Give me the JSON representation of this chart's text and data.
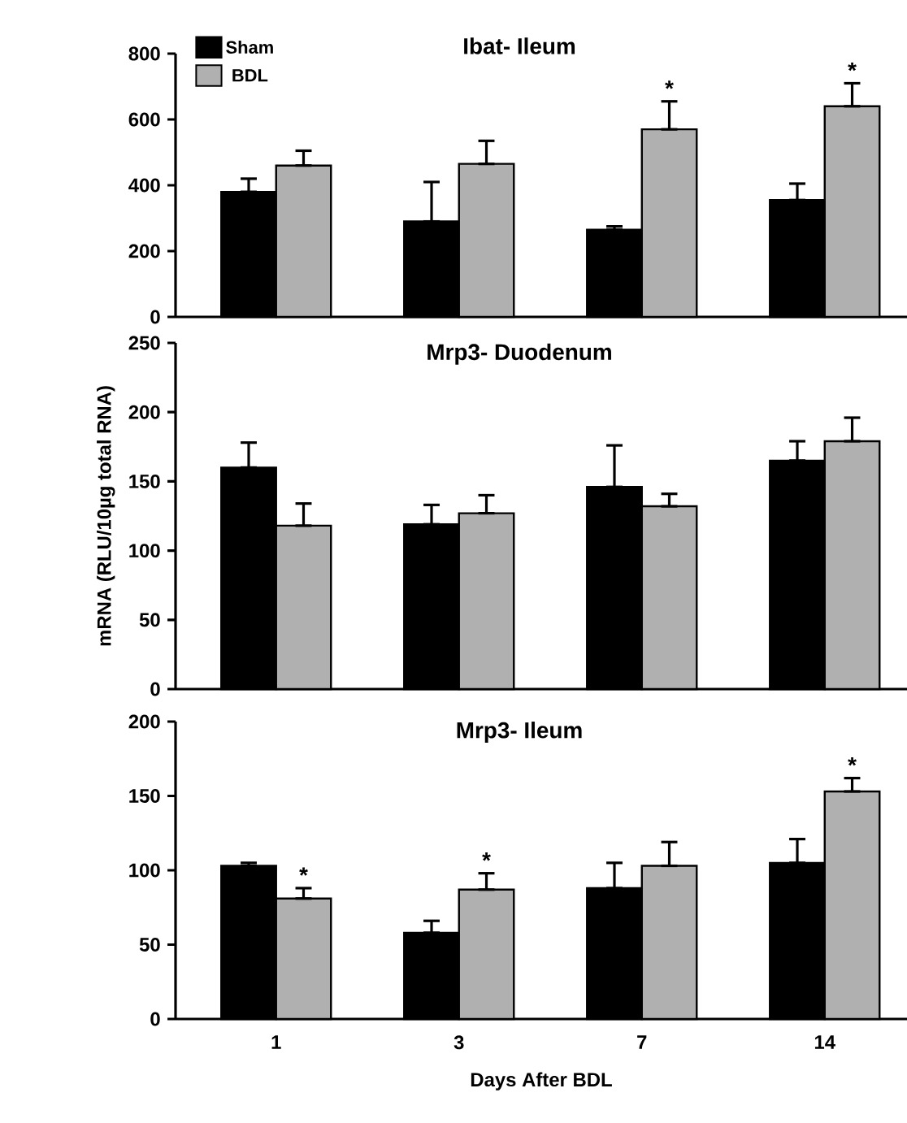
{
  "chart_data": [
    {
      "type": "bar",
      "title": "Ibat- Ileum",
      "categories": [
        "1",
        "3",
        "7",
        "14"
      ],
      "series": [
        {
          "name": "Sham",
          "color": "#000000",
          "values": [
            380,
            290,
            265,
            355
          ],
          "errors": [
            [
              380,
              420
            ],
            [
              290,
              410
            ],
            [
              265,
              275
            ],
            [
              355,
              405
            ]
          ]
        },
        {
          "name": "BDL",
          "color": "#b0b0b0",
          "values": [
            460,
            465,
            570,
            640
          ],
          "errors": [
            [
              460,
              505
            ],
            [
              465,
              535
            ],
            [
              570,
              655
            ],
            [
              640,
              710
            ]
          ],
          "value_labels": [
            null,
            null,
            "*",
            "*"
          ]
        }
      ],
      "ylim": [
        0,
        800
      ],
      "yticks": [
        0,
        200,
        400,
        600,
        800
      ],
      "legend": "top left",
      "tick_labels": "y"
    },
    {
      "type": "bar",
      "title": "Mrp3- Duodenum",
      "ylabel": "mRNA (RLU/10µg total RNA)",
      "categories": [
        "1",
        "3",
        "7",
        "14"
      ],
      "series": [
        {
          "color": "#000000",
          "values": [
            160,
            119,
            146,
            165
          ],
          "errors": [
            [
              160,
              178
            ],
            [
              119,
              133
            ],
            [
              146,
              176
            ],
            [
              165,
              179
            ]
          ]
        },
        {
          "color": "#b0b0b0",
          "values": [
            118,
            127,
            132,
            179
          ],
          "errors": [
            [
              118,
              134
            ],
            [
              127,
              140
            ],
            [
              132,
              141
            ],
            [
              179,
              196
            ]
          ]
        }
      ],
      "ylim": [
        0,
        250
      ],
      "yticks": [
        0,
        50,
        100,
        150,
        200,
        250
      ],
      "tick_labels": "y"
    },
    {
      "type": "bar",
      "title": "Mrp3- Ileum",
      "xlabel": "Days After BDL",
      "categories": [
        "1",
        "3",
        "7",
        "14"
      ],
      "series": [
        {
          "color": "#000000",
          "values": [
            103,
            58,
            88,
            105
          ],
          "errors": [
            [
              103,
              105
            ],
            [
              58,
              66
            ],
            [
              88,
              105
            ],
            [
              105,
              121
            ]
          ]
        },
        {
          "color": "#b0b0b0",
          "values": [
            81,
            87,
            103,
            153
          ],
          "errors": [
            [
              81,
              88
            ],
            [
              87,
              98
            ],
            [
              103,
              119
            ],
            [
              153,
              162
            ]
          ],
          "value_labels": [
            "*",
            "*",
            null,
            "*"
          ]
        }
      ],
      "ylim": [
        0,
        200
      ],
      "yticks": [
        0,
        50,
        100,
        150,
        200
      ]
    }
  ]
}
